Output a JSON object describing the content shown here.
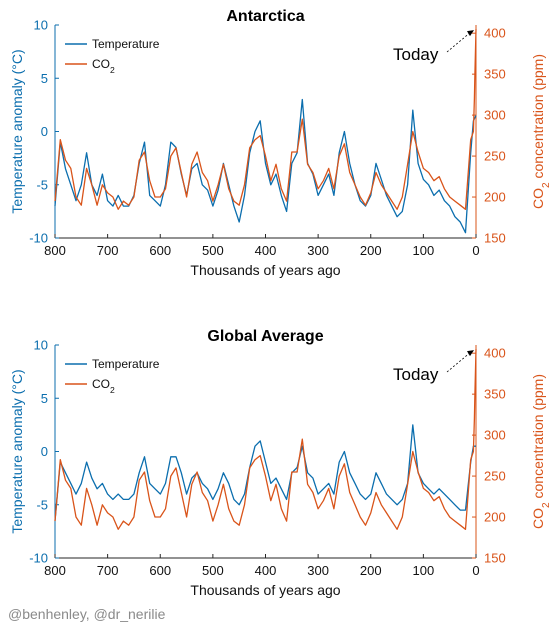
{
  "credit": "@benhenley, @dr_nerilie",
  "colors": {
    "temperature": "#0b6eae",
    "co2": "#d9541a",
    "axis": "#262626"
  },
  "chart_data": [
    {
      "type": "line",
      "title": "Antarctica",
      "xlabel": "Thousands of years ago",
      "ylabel_left": "Temperature anomaly (°C)",
      "ylabel_right": "CO2 concentration (ppm)",
      "xlim": [
        800,
        0
      ],
      "x_reversed": true,
      "xticks": [
        800,
        700,
        600,
        500,
        400,
        300,
        200,
        100,
        0
      ],
      "ylim_left": [
        -10,
        10
      ],
      "yticks_left": [
        -10,
        -5,
        0,
        5,
        10
      ],
      "ylim_right": [
        150,
        410
      ],
      "yticks_right": [
        150,
        200,
        250,
        300,
        350,
        400
      ],
      "legend_position": "top-left",
      "annotation": {
        "text": "Today",
        "points_to": {
          "x": 0,
          "y": 405
        }
      },
      "series": [
        {
          "name": "Temperature",
          "axis": "left",
          "x": [
            800,
            790,
            780,
            770,
            760,
            750,
            740,
            730,
            720,
            710,
            700,
            690,
            680,
            670,
            660,
            650,
            640,
            630,
            620,
            610,
            600,
            590,
            580,
            570,
            560,
            550,
            540,
            530,
            520,
            510,
            500,
            490,
            480,
            470,
            460,
            450,
            440,
            430,
            420,
            410,
            400,
            390,
            380,
            370,
            360,
            350,
            340,
            330,
            320,
            310,
            300,
            290,
            280,
            270,
            260,
            250,
            240,
            230,
            220,
            210,
            200,
            190,
            180,
            170,
            160,
            150,
            140,
            130,
            120,
            110,
            100,
            90,
            80,
            70,
            60,
            50,
            40,
            30,
            20,
            10,
            5,
            0
          ],
          "y": [
            -7,
            -1,
            -3.5,
            -5,
            -6.5,
            -5,
            -2,
            -5,
            -6,
            -4,
            -6.5,
            -7,
            -6,
            -7,
            -7,
            -6,
            -3,
            -1,
            -6,
            -6.5,
            -7,
            -5,
            -1,
            -1.5,
            -4,
            -6,
            -3.5,
            -3,
            -5,
            -5.5,
            -7,
            -5.5,
            -3,
            -5,
            -7,
            -8.5,
            -6,
            -2,
            0,
            1,
            -3,
            -5,
            -4,
            -6,
            -7.5,
            -3,
            -2,
            3,
            -3,
            -4,
            -6,
            -5,
            -4,
            -6,
            -2,
            0,
            -3,
            -5,
            -6.5,
            -7,
            -6,
            -3,
            -4.5,
            -6,
            -7,
            -8,
            -7.5,
            -5,
            2,
            -3,
            -4.5,
            -5,
            -6,
            -5.5,
            -6.5,
            -7,
            -8,
            -8.5,
            -9.5,
            -2,
            1,
            1.5
          ]
        },
        {
          "name": "CO2",
          "axis": "right",
          "x": [
            800,
            790,
            780,
            770,
            760,
            750,
            740,
            730,
            720,
            710,
            700,
            690,
            680,
            670,
            660,
            650,
            640,
            630,
            620,
            610,
            600,
            590,
            580,
            570,
            560,
            550,
            540,
            530,
            520,
            510,
            500,
            490,
            480,
            470,
            460,
            450,
            440,
            430,
            420,
            410,
            400,
            390,
            380,
            370,
            360,
            350,
            340,
            330,
            320,
            310,
            300,
            290,
            280,
            270,
            260,
            250,
            240,
            230,
            220,
            210,
            200,
            190,
            180,
            170,
            160,
            150,
            140,
            130,
            120,
            110,
            100,
            90,
            80,
            70,
            60,
            50,
            40,
            30,
            20,
            10,
            5,
            3,
            2,
            0
          ],
          "y": [
            195,
            270,
            245,
            235,
            200,
            190,
            235,
            215,
            190,
            215,
            205,
            200,
            185,
            195,
            190,
            200,
            245,
            255,
            220,
            200,
            200,
            210,
            250,
            260,
            230,
            200,
            240,
            255,
            230,
            220,
            195,
            215,
            240,
            210,
            195,
            190,
            215,
            260,
            270,
            275,
            250,
            220,
            240,
            210,
            195,
            255,
            255,
            295,
            240,
            230,
            210,
            220,
            235,
            210,
            250,
            265,
            230,
            215,
            200,
            190,
            205,
            230,
            215,
            205,
            195,
            185,
            200,
            240,
            280,
            255,
            235,
            230,
            220,
            225,
            210,
            200,
            195,
            190,
            185,
            270,
            280,
            320,
            350,
            405
          ]
        }
      ]
    },
    {
      "type": "line",
      "title": "Global Average",
      "xlabel": "Thousands of years ago",
      "ylabel_left": "Temperature anomaly (°C)",
      "ylabel_right": "CO2 concentration (ppm)",
      "xlim": [
        800,
        0
      ],
      "x_reversed": true,
      "xticks": [
        800,
        700,
        600,
        500,
        400,
        300,
        200,
        100,
        0
      ],
      "ylim_left": [
        -10,
        10
      ],
      "yticks_left": [
        -10,
        -5,
        0,
        5,
        10
      ],
      "ylim_right": [
        150,
        410
      ],
      "yticks_right": [
        150,
        200,
        250,
        300,
        350,
        400
      ],
      "legend_position": "top-left",
      "annotation": {
        "text": "Today",
        "points_to": {
          "x": 0,
          "y": 405
        }
      },
      "series": [
        {
          "name": "Temperature",
          "axis": "left",
          "x": [
            800,
            790,
            780,
            770,
            760,
            750,
            740,
            730,
            720,
            710,
            700,
            690,
            680,
            670,
            660,
            650,
            640,
            630,
            620,
            610,
            600,
            590,
            580,
            570,
            560,
            550,
            540,
            530,
            520,
            510,
            500,
            490,
            480,
            470,
            460,
            450,
            440,
            430,
            420,
            410,
            400,
            390,
            380,
            370,
            360,
            350,
            340,
            330,
            320,
            310,
            300,
            290,
            280,
            270,
            260,
            250,
            240,
            230,
            220,
            210,
            200,
            190,
            180,
            170,
            160,
            150,
            140,
            130,
            120,
            110,
            100,
            90,
            80,
            70,
            60,
            50,
            40,
            30,
            20,
            10,
            5,
            0
          ],
          "y": [
            -6.5,
            -1,
            -2,
            -3,
            -4,
            -3,
            -1,
            -2.5,
            -3.5,
            -3,
            -4,
            -4.5,
            -4,
            -4.5,
            -4.5,
            -4,
            -2,
            -0.5,
            -3,
            -3.5,
            -4,
            -3,
            -0.5,
            -0.5,
            -2,
            -4,
            -2.5,
            -2,
            -3,
            -3.5,
            -4.5,
            -3.5,
            -2,
            -3,
            -4.5,
            -5,
            -4,
            -1.5,
            0.5,
            1,
            -1,
            -3,
            -2.5,
            -3.5,
            -4.5,
            -2,
            -1.5,
            0.5,
            -2,
            -2.5,
            -4,
            -3.5,
            -3,
            -4,
            -1,
            0,
            -2,
            -3,
            -4,
            -4.5,
            -4,
            -2,
            -3,
            -4,
            -4.5,
            -5,
            -4.5,
            -3,
            2.5,
            -2,
            -3,
            -3.5,
            -4,
            -3.5,
            -4,
            -4.5,
            -5,
            -5.5,
            -5.5,
            -1,
            0.5,
            0.5
          ]
        },
        {
          "name": "CO2",
          "axis": "right",
          "x": [
            800,
            790,
            780,
            770,
            760,
            750,
            740,
            730,
            720,
            710,
            700,
            690,
            680,
            670,
            660,
            650,
            640,
            630,
            620,
            610,
            600,
            590,
            580,
            570,
            560,
            550,
            540,
            530,
            520,
            510,
            500,
            490,
            480,
            470,
            460,
            450,
            440,
            430,
            420,
            410,
            400,
            390,
            380,
            370,
            360,
            350,
            340,
            330,
            320,
            310,
            300,
            290,
            280,
            270,
            260,
            250,
            240,
            230,
            220,
            210,
            200,
            190,
            180,
            170,
            160,
            150,
            140,
            130,
            120,
            110,
            100,
            90,
            80,
            70,
            60,
            50,
            40,
            30,
            20,
            10,
            5,
            3,
            2,
            0
          ],
          "y": [
            195,
            270,
            245,
            235,
            200,
            190,
            235,
            215,
            190,
            215,
            205,
            200,
            185,
            195,
            190,
            200,
            245,
            255,
            220,
            200,
            200,
            210,
            250,
            260,
            230,
            200,
            240,
            255,
            230,
            220,
            195,
            215,
            240,
            210,
            195,
            190,
            215,
            260,
            270,
            275,
            250,
            220,
            240,
            210,
            195,
            255,
            255,
            295,
            240,
            230,
            210,
            220,
            235,
            210,
            250,
            265,
            230,
            215,
            200,
            190,
            205,
            230,
            215,
            205,
            195,
            185,
            200,
            240,
            280,
            255,
            235,
            230,
            220,
            225,
            210,
            200,
            195,
            190,
            185,
            270,
            280,
            320,
            350,
            405
          ]
        }
      ]
    }
  ]
}
